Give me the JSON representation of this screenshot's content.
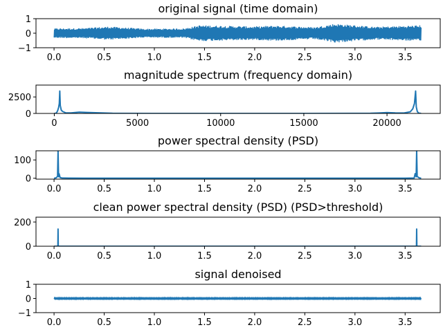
{
  "colors": {
    "line": "#1f77b4",
    "axes": "#000000",
    "background": "#ffffff"
  },
  "chart_data": [
    {
      "type": "line",
      "title": "original signal (time domain)",
      "xlabel": "",
      "ylabel": "",
      "xlim": [
        -0.18,
        3.85
      ],
      "ylim": [
        -1,
        1
      ],
      "xticks": [
        0.0,
        0.5,
        1.0,
        1.5,
        2.0,
        2.5,
        3.0,
        3.5
      ],
      "xtick_labels": [
        "0.0",
        "0.5",
        "1.0",
        "1.5",
        "2.0",
        "2.5",
        "3.0",
        "3.5"
      ],
      "yticks": [
        -1,
        0,
        1
      ],
      "ytick_labels": [
        "−1",
        "0",
        "1"
      ],
      "grid": false,
      "series": [
        {
          "style": "noise-band",
          "x_range": [
            0.0,
            3.66
          ],
          "envelope": [
            {
              "x": 0.0,
              "amp": 0.3
            },
            {
              "x": 0.3,
              "amp": 0.32
            },
            {
              "x": 0.55,
              "amp": 0.42
            },
            {
              "x": 0.9,
              "amp": 0.28
            },
            {
              "x": 1.3,
              "amp": 0.3
            },
            {
              "x": 1.45,
              "amp": 0.5
            },
            {
              "x": 2.0,
              "amp": 0.42
            },
            {
              "x": 2.2,
              "amp": 0.48
            },
            {
              "x": 2.6,
              "amp": 0.38
            },
            {
              "x": 2.8,
              "amp": 0.6
            },
            {
              "x": 3.2,
              "amp": 0.4
            },
            {
              "x": 3.66,
              "amp": 0.5
            }
          ]
        }
      ]
    },
    {
      "type": "line",
      "title": "magnitude spectrum (frequency domain)",
      "xlabel": "",
      "ylabel": "",
      "xlim": [
        -1100,
        23200
      ],
      "ylim": [
        0,
        4300
      ],
      "xticks": [
        0,
        5000,
        10000,
        15000,
        20000
      ],
      "xtick_labels": [
        "0",
        "5000",
        "10000",
        "15000",
        "20000"
      ],
      "yticks": [
        0,
        2500
      ],
      "ytick_labels": [
        "0",
        "2500"
      ],
      "grid": false,
      "series": [
        {
          "style": "line",
          "points": [
            [
              0,
              0
            ],
            [
              120,
              40
            ],
            [
              200,
              400
            ],
            [
              260,
              900
            ],
            [
              300,
              1500
            ],
            [
              330,
              3400
            ],
            [
              360,
              1200
            ],
            [
              420,
              500
            ],
            [
              500,
              300
            ],
            [
              700,
              80
            ],
            [
              1000,
              80
            ],
            [
              1500,
              200
            ],
            [
              2000,
              150
            ],
            [
              2500,
              100
            ],
            [
              3000,
              60
            ],
            [
              3500,
              20
            ],
            [
              4000,
              10
            ],
            [
              6000,
              5
            ],
            [
              10000,
              3
            ],
            [
              15000,
              3
            ],
            [
              18000,
              10
            ],
            [
              19000,
              30
            ],
            [
              19500,
              70
            ],
            [
              20000,
              130
            ],
            [
              20500,
              80
            ],
            [
              21000,
              60
            ],
            [
              21400,
              250
            ],
            [
              21550,
              700
            ],
            [
              21650,
              1500
            ],
            [
              21720,
              3400
            ],
            [
              21760,
              1000
            ],
            [
              21820,
              300
            ],
            [
              21900,
              50
            ],
            [
              22050,
              0
            ]
          ]
        }
      ]
    },
    {
      "type": "line",
      "title": "power spectral density (PSD)",
      "xlabel": "",
      "ylabel": "",
      "xlim": [
        -0.18,
        3.85
      ],
      "ylim": [
        -5,
        150
      ],
      "xticks": [
        0.0,
        0.5,
        1.0,
        1.5,
        2.0,
        2.5,
        3.0,
        3.5
      ],
      "xtick_labels": [
        "0.0",
        "0.5",
        "1.0",
        "1.5",
        "2.0",
        "2.5",
        "3.0",
        "3.5"
      ],
      "yticks": [
        0,
        100
      ],
      "ytick_labels": [
        "0",
        "100"
      ],
      "grid": false,
      "series": [
        {
          "style": "line",
          "points": [
            [
              0.0,
              0
            ],
            [
              0.02,
              2
            ],
            [
              0.035,
              10
            ],
            [
              0.04,
              150
            ],
            [
              0.045,
              8
            ],
            [
              0.05,
              25
            ],
            [
              0.06,
              4
            ],
            [
              0.08,
              1
            ],
            [
              0.15,
              0.5
            ],
            [
              0.3,
              0.3
            ],
            [
              0.6,
              0.2
            ],
            [
              1.0,
              0.1
            ],
            [
              2.0,
              0.1
            ],
            [
              3.0,
              0.1
            ],
            [
              3.5,
              0.3
            ],
            [
              3.59,
              1
            ],
            [
              3.6,
              25
            ],
            [
              3.61,
              8
            ],
            [
              3.615,
              150
            ],
            [
              3.62,
              10
            ],
            [
              3.64,
              2
            ],
            [
              3.66,
              0
            ]
          ]
        }
      ]
    },
    {
      "type": "line",
      "title": "clean power spectral density (PSD) (PSD>threshold)",
      "xlabel": "",
      "ylabel": "",
      "xlim": [
        -0.18,
        3.85
      ],
      "ylim": [
        0,
        240
      ],
      "xticks": [
        0.0,
        0.5,
        1.0,
        1.5,
        2.0,
        2.5,
        3.0,
        3.5
      ],
      "xtick_labels": [
        "0.0",
        "0.5",
        "1.0",
        "1.5",
        "2.0",
        "2.5",
        "3.0",
        "3.5"
      ],
      "yticks": [
        0,
        200
      ],
      "ytick_labels": [
        "0",
        "200"
      ],
      "grid": false,
      "series": [
        {
          "style": "line",
          "points": [
            [
              0.0,
              0
            ],
            [
              0.038,
              0
            ],
            [
              0.04,
              142
            ],
            [
              0.042,
              0
            ],
            [
              3.613,
              0
            ],
            [
              3.615,
              142
            ],
            [
              3.617,
              0
            ],
            [
              3.66,
              0
            ]
          ]
        }
      ]
    },
    {
      "type": "line",
      "title": "signal denoised",
      "xlabel": "",
      "ylabel": "",
      "xlim": [
        -0.18,
        3.85
      ],
      "ylim": [
        -1,
        1
      ],
      "xticks": [
        0.0,
        0.5,
        1.0,
        1.5,
        2.0,
        2.5,
        3.0,
        3.5
      ],
      "xtick_labels": [
        "0.0",
        "0.5",
        "1.0",
        "1.5",
        "2.0",
        "2.5",
        "3.0",
        "3.5"
      ],
      "yticks": [
        -1,
        0,
        1
      ],
      "ytick_labels": [
        "−1",
        "0",
        "1"
      ],
      "grid": false,
      "series": [
        {
          "style": "noise-band",
          "x_range": [
            0.0,
            3.66
          ],
          "envelope": [
            {
              "x": 0.0,
              "amp": 0.04
            },
            {
              "x": 3.66,
              "amp": 0.04
            }
          ]
        }
      ]
    }
  ]
}
